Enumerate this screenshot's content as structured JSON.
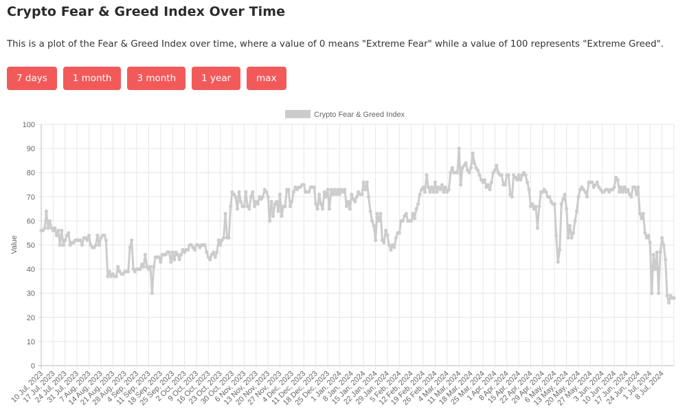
{
  "page": {
    "title": "Crypto Fear & Greed Index Over Time",
    "description": "This is a plot of the Fear & Greed Index over time, where a value of 0 means \"Extreme Fear\" while a value of 100 represents \"Extreme Greed\".",
    "buttons": [
      "7 days",
      "1 month",
      "3 month",
      "1 year",
      "max"
    ],
    "accent_color": "#f25a5a"
  },
  "chart_data": {
    "type": "line",
    "title": "",
    "xlabel": "",
    "ylabel": "Value",
    "ylim": [
      0,
      100
    ],
    "yticks": [
      0,
      10,
      20,
      30,
      40,
      50,
      60,
      70,
      80,
      90,
      100
    ],
    "grid": true,
    "legend": "top",
    "series_name": "Crypto Fear & Greed Index",
    "series_color": "#cccccc",
    "weeks": [
      {
        "label": "10 Jul, 2023",
        "values": [
          56,
          56,
          57,
          64,
          57,
          60,
          57
        ]
      },
      {
        "label": "17 Jul, 2023",
        "values": [
          56,
          57,
          54,
          56,
          50,
          56,
          50
        ]
      },
      {
        "label": "24 Jul, 2023",
        "values": [
          52,
          54,
          55,
          50,
          51,
          51,
          52
        ]
      },
      {
        "label": "31 Jul, 2023",
        "values": [
          52,
          52,
          52,
          50,
          53,
          53,
          52
        ]
      },
      {
        "label": "7 Aug, 2023",
        "values": [
          54,
          50,
          49,
          49,
          50,
          54,
          50
        ]
      },
      {
        "label": "14 Aug, 2023",
        "values": [
          53,
          54,
          54,
          52,
          37,
          39,
          37
        ]
      },
      {
        "label": "21 Aug, 2023",
        "values": [
          38,
          37,
          37,
          41,
          39,
          38,
          38
        ]
      },
      {
        "label": "28 Aug, 2023",
        "values": [
          39,
          39,
          39,
          49,
          52,
          40,
          39
        ]
      },
      {
        "label": "4 Sep, 2023",
        "values": [
          40,
          40,
          40,
          42,
          41,
          46,
          41
        ]
      },
      {
        "label": "11 Sep, 2023",
        "values": [
          40,
          41,
          30,
          41,
          45,
          45,
          45
        ]
      },
      {
        "label": "18 Sep, 2023",
        "values": [
          43,
          46,
          46,
          46,
          47,
          47,
          43
        ]
      },
      {
        "label": "25 Sep, 2023",
        "values": [
          47,
          44,
          47,
          46,
          44,
          46,
          48
        ]
      },
      {
        "label": "2 Oct, 2023",
        "values": [
          47,
          48,
          48,
          50,
          50,
          49,
          48
        ]
      },
      {
        "label": "9 Oct, 2023",
        "values": [
          50,
          50,
          49,
          50,
          50,
          50,
          47
        ]
      },
      {
        "label": "16 Oct, 2023",
        "values": [
          45,
          44,
          46,
          47,
          45,
          47,
          52
        ]
      },
      {
        "label": "23 Oct, 2023",
        "values": [
          50,
          52,
          53,
          63,
          53,
          53,
          66
        ]
      },
      {
        "label": "30 Oct, 2023",
        "values": [
          72,
          71,
          70,
          65,
          72,
          68,
          66
        ]
      },
      {
        "label": "6 Nov, 2023",
        "values": [
          66,
          72,
          66,
          65,
          70,
          72,
          66
        ]
      },
      {
        "label": "13 Nov, 2023",
        "values": [
          68,
          67,
          70,
          69,
          70,
          73,
          72
        ]
      },
      {
        "label": "20 Nov, 2023",
        "values": [
          70,
          60,
          68,
          62,
          67,
          68,
          64
        ]
      },
      {
        "label": "27 Nov, 2023",
        "values": [
          71,
          62,
          66,
          66,
          73,
          73,
          66
        ]
      },
      {
        "label": "4 Dec, 2023",
        "values": [
          68,
          72,
          74,
          73,
          74,
          74,
          75
        ]
      },
      {
        "label": "11 Dec, 2023",
        "values": [
          75,
          72,
          72,
          72,
          74,
          74,
          74
        ]
      },
      {
        "label": "18 Dec, 2023",
        "values": [
          67,
          65,
          71,
          67,
          65,
          72,
          70
        ]
      },
      {
        "label": "25 Dec, 2023",
        "values": [
          73,
          65,
          73,
          71,
          73,
          71,
          73
        ]
      },
      {
        "label": "1 Jan, 2024",
        "values": [
          71,
          73,
          72,
          73,
          66,
          68,
          65
        ]
      },
      {
        "label": "8 Jan, 2024",
        "values": [
          71,
          69,
          68,
          70,
          72,
          71,
          71
        ]
      },
      {
        "label": "15 Jan, 2024",
        "values": [
          76,
          73,
          76,
          70,
          64,
          60,
          58
        ]
      },
      {
        "label": "22 Jan, 2024",
        "values": [
          52,
          63,
          60,
          63,
          52,
          51,
          56
        ]
      },
      {
        "label": "29 Jan, 2024",
        "values": [
          54,
          50,
          48,
          50,
          49,
          53,
          55
        ]
      },
      {
        "label": "5 Feb, 2024",
        "values": [
          55,
          60,
          60,
          62,
          63,
          60,
          60
        ]
      },
      {
        "label": "12 Feb, 2024",
        "values": [
          60,
          63,
          61,
          65,
          67,
          71,
          73
        ]
      },
      {
        "label": "19 Feb, 2024",
        "values": [
          74,
          72,
          79,
          74,
          72,
          74,
          72
        ]
      },
      {
        "label": "26 Feb, 2024",
        "values": [
          76,
          72,
          74,
          73,
          75,
          72,
          74
        ]
      },
      {
        "label": "4 Mar, 2024",
        "values": [
          72,
          73,
          80,
          82,
          80,
          80,
          80
        ]
      },
      {
        "label": "11 Mar, 2024",
        "values": [
          90,
          75,
          82,
          83,
          84,
          81,
          80
        ]
      },
      {
        "label": "18 Mar, 2024",
        "values": [
          82,
          88,
          84,
          82,
          81,
          79,
          77
        ]
      },
      {
        "label": "25 Mar, 2024",
        "values": [
          76,
          77,
          74,
          75,
          73,
          76,
          80
        ]
      },
      {
        "label": "1 Apr, 2024",
        "values": [
          81,
          83,
          80,
          79,
          79,
          75,
          75
        ]
      },
      {
        "label": "8 Apr, 2024",
        "values": [
          79,
          79,
          71,
          70,
          79,
          78,
          77
        ]
      },
      {
        "label": "15 Apr, 2024",
        "values": [
          79,
          77,
          79,
          80,
          79,
          76,
          73
        ]
      },
      {
        "label": "22 Apr, 2024",
        "values": [
          66,
          67,
          65,
          66,
          57,
          66,
          72
        ]
      },
      {
        "label": "29 Apr, 2024",
        "values": [
          72,
          73,
          72,
          70,
          70,
          68,
          67
        ]
      },
      {
        "label": "6 May, 2024",
        "values": [
          67,
          54,
          43,
          48,
          67,
          69,
          71
        ]
      },
      {
        "label": "13 May, 2024",
        "values": [
          65,
          53,
          58,
          53,
          55,
          60,
          64
        ]
      },
      {
        "label": "20 May, 2024",
        "values": [
          70,
          73,
          74,
          73,
          72,
          70,
          76
        ]
      },
      {
        "label": "27 May, 2024",
        "values": [
          76,
          76,
          74,
          75,
          76,
          74,
          73
        ]
      },
      {
        "label": "3 Jun, 2024",
        "values": [
          72,
          72,
          73,
          73,
          72,
          73,
          73
        ]
      },
      {
        "label": "10 Jun, 2024",
        "values": [
          74,
          78,
          77,
          72,
          74,
          72,
          74
        ]
      },
      {
        "label": "17 Jun, 2024",
        "values": [
          72,
          73,
          71,
          70,
          74,
          74,
          71
        ]
      },
      {
        "label": "24 Jun, 2024",
        "values": [
          74,
          63,
          61,
          63,
          55,
          53,
          54
        ]
      },
      {
        "label": "1 Jul, 2024",
        "values": [
          51,
          30,
          46,
          40,
          47,
          30,
          47
        ]
      },
      {
        "label": "8 Jul, 2024",
        "values": [
          53,
          50,
          44,
          29,
          26,
          29,
          28,
          28
        ]
      }
    ]
  }
}
